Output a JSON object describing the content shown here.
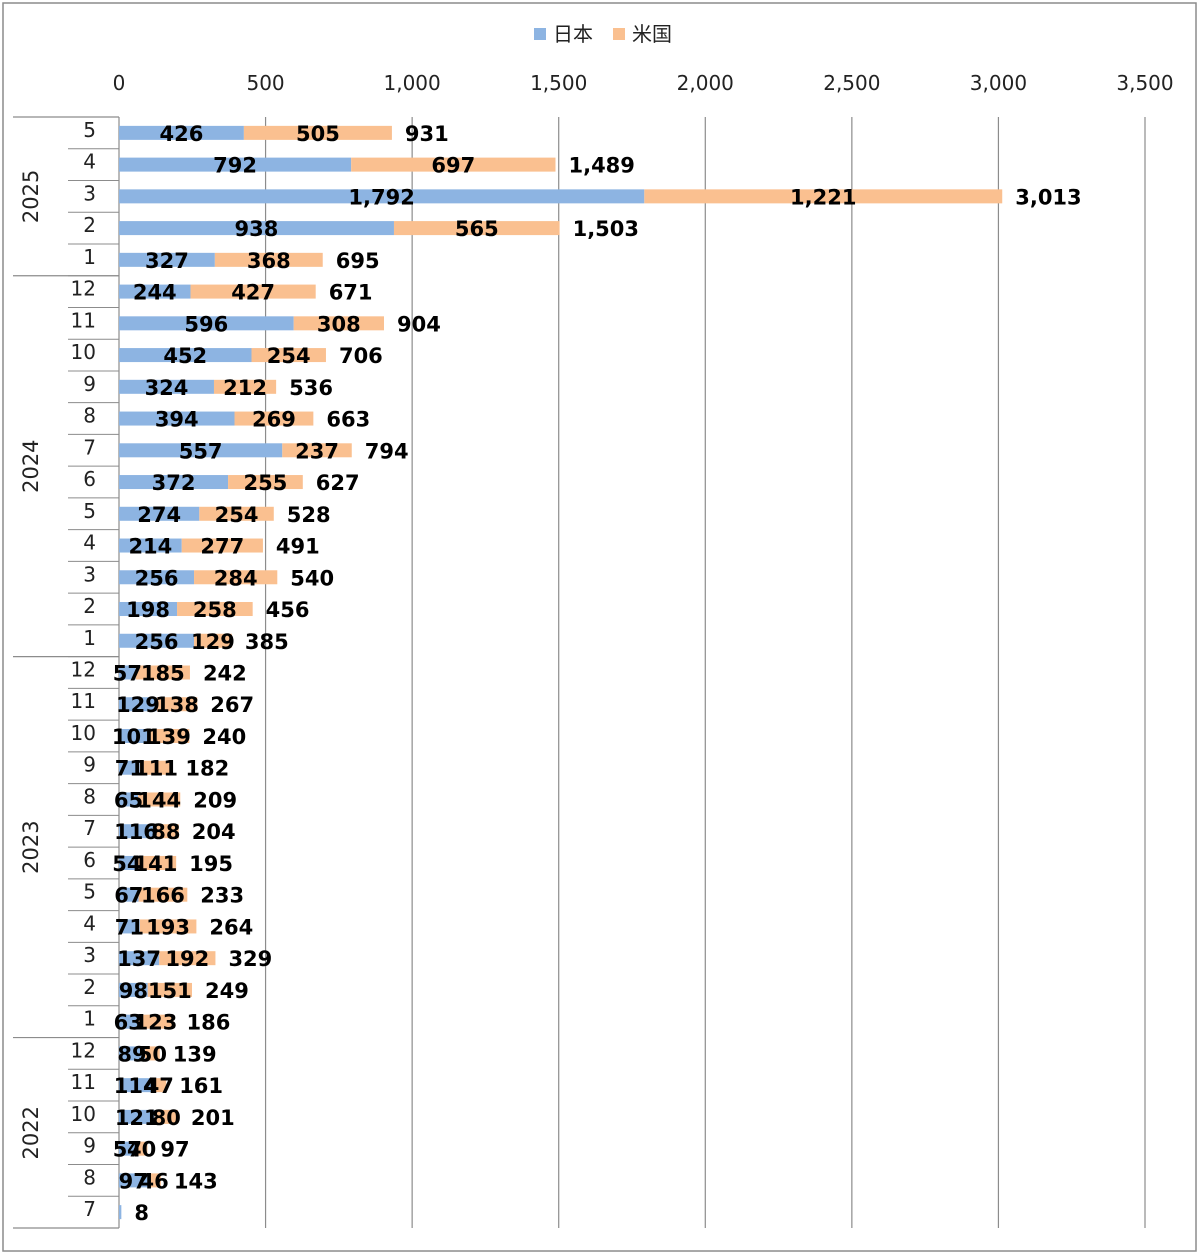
{
  "chart_data": {
    "type": "bar",
    "orientation": "horizontal",
    "stacked": true,
    "legend_position": "top",
    "xlim": [
      0,
      3500
    ],
    "x_ticks": [
      0,
      500,
      1000,
      1500,
      2000,
      2500,
      3000,
      3500
    ],
    "x_tick_labels": [
      "0",
      "500",
      "1,000",
      "1,500",
      "2,000",
      "2,500",
      "3,000",
      "3,500"
    ],
    "grid": true,
    "colors": {
      "japan": "#8DB4E2",
      "usa": "#FAC090"
    },
    "categories": [
      {
        "year": "2025",
        "month": "5"
      },
      {
        "year": "2025",
        "month": "4"
      },
      {
        "year": "2025",
        "month": "3"
      },
      {
        "year": "2025",
        "month": "2"
      },
      {
        "year": "2025",
        "month": "1"
      },
      {
        "year": "2024",
        "month": "12"
      },
      {
        "year": "2024",
        "month": "11"
      },
      {
        "year": "2024",
        "month": "10"
      },
      {
        "year": "2024",
        "month": "9"
      },
      {
        "year": "2024",
        "month": "8"
      },
      {
        "year": "2024",
        "month": "7"
      },
      {
        "year": "2024",
        "month": "6"
      },
      {
        "year": "2024",
        "month": "5"
      },
      {
        "year": "2024",
        "month": "4"
      },
      {
        "year": "2024",
        "month": "3"
      },
      {
        "year": "2024",
        "month": "2"
      },
      {
        "year": "2024",
        "month": "1"
      },
      {
        "year": "2023",
        "month": "12"
      },
      {
        "year": "2023",
        "month": "11"
      },
      {
        "year": "2023",
        "month": "10"
      },
      {
        "year": "2023",
        "month": "9"
      },
      {
        "year": "2023",
        "month": "8"
      },
      {
        "year": "2023",
        "month": "7"
      },
      {
        "year": "2023",
        "month": "6"
      },
      {
        "year": "2023",
        "month": "5"
      },
      {
        "year": "2023",
        "month": "4"
      },
      {
        "year": "2023",
        "month": "3"
      },
      {
        "year": "2023",
        "month": "2"
      },
      {
        "year": "2023",
        "month": "1"
      },
      {
        "year": "2022",
        "month": "12"
      },
      {
        "year": "2022",
        "month": "11"
      },
      {
        "year": "2022",
        "month": "10"
      },
      {
        "year": "2022",
        "month": "9"
      },
      {
        "year": "2022",
        "month": "8"
      },
      {
        "year": "2022",
        "month": "7"
      }
    ],
    "year_groups": [
      {
        "year": "2025",
        "count": 5
      },
      {
        "year": "2024",
        "count": 12
      },
      {
        "year": "2023",
        "count": 12
      },
      {
        "year": "2022",
        "count": 6
      }
    ],
    "series": [
      {
        "name": "日本",
        "color_key": "japan",
        "values": [
          426,
          792,
          1792,
          938,
          327,
          244,
          596,
          452,
          324,
          394,
          557,
          372,
          274,
          214,
          256,
          198,
          256,
          57,
          129,
          101,
          71,
          65,
          116,
          54,
          67,
          71,
          137,
          98,
          63,
          89,
          114,
          121,
          57,
          97,
          8
        ]
      },
      {
        "name": "米国",
        "color_key": "usa",
        "values": [
          505,
          697,
          1221,
          565,
          368,
          427,
          308,
          254,
          212,
          269,
          237,
          255,
          254,
          277,
          284,
          258,
          129,
          185,
          138,
          139,
          111,
          144,
          88,
          141,
          166,
          193,
          192,
          151,
          123,
          50,
          47,
          80,
          40,
          46,
          null
        ]
      }
    ],
    "series_labels": [
      [
        "426",
        "792",
        "1,792",
        "938",
        "327",
        "244",
        "596",
        "452",
        "324",
        "394",
        "557",
        "372",
        "274",
        "214",
        "256",
        "198",
        "256",
        "57",
        "129",
        "101",
        "71",
        "65",
        "116",
        "54",
        "67",
        "71",
        "137",
        "98",
        "63",
        "89",
        "114",
        "121",
        "57",
        "97",
        ""
      ],
      [
        "505",
        "697",
        "1,221",
        "565",
        "368",
        "427",
        "308",
        "254",
        "212",
        "269",
        "237",
        "255",
        "254",
        "277",
        "284",
        "258",
        "129",
        "185",
        "138",
        "139",
        "111",
        "144",
        "88",
        "141",
        "166",
        "193",
        "192",
        "151",
        "123",
        "50",
        "47",
        "80",
        "40",
        "46",
        ""
      ]
    ],
    "total_labels": [
      "931",
      "1,489",
      "3,013",
      "1,503",
      "695",
      "671",
      "904",
      "706",
      "536",
      "663",
      "794",
      "627",
      "528",
      "491",
      "540",
      "456",
      "385",
      "242",
      "267",
      "240",
      "182",
      "209",
      "204",
      "195",
      "233",
      "264",
      "329",
      "249",
      "186",
      "139",
      "161",
      "201",
      "97",
      "143",
      "8"
    ],
    "totals": [
      931,
      1489,
      3013,
      1503,
      695,
      671,
      904,
      706,
      536,
      663,
      794,
      627,
      528,
      491,
      540,
      456,
      385,
      242,
      267,
      240,
      182,
      209,
      204,
      195,
      233,
      264,
      329,
      249,
      186,
      139,
      161,
      201,
      97,
      143,
      8
    ]
  }
}
